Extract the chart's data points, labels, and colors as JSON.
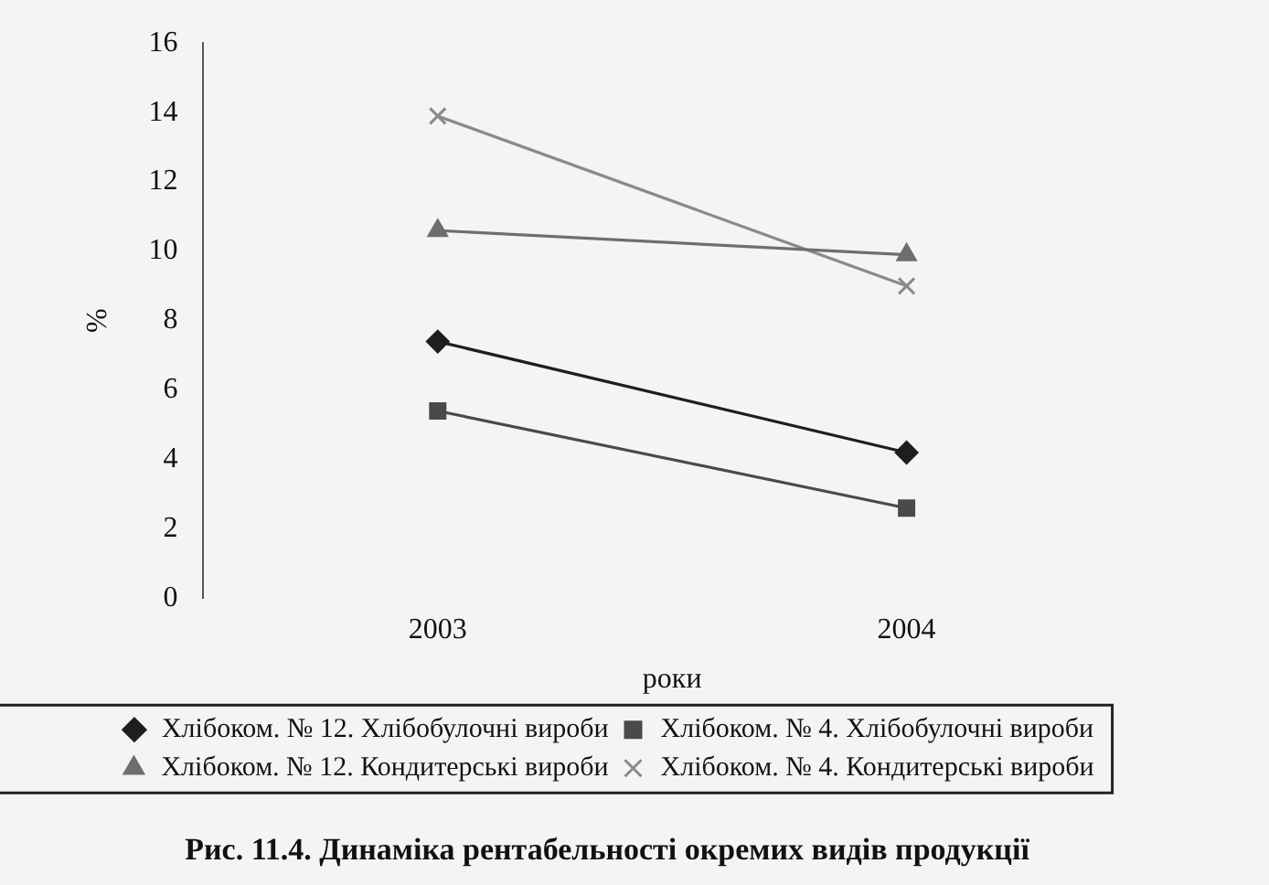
{
  "chart_data": {
    "type": "line",
    "title": "Рис. 11.4. Динаміка рентабельності окремих видів продукції",
    "xlabel": "роки",
    "ylabel": "%",
    "categories": [
      "2003",
      "2004"
    ],
    "ylim": [
      0,
      16
    ],
    "yticks": [
      0,
      2,
      4,
      6,
      8,
      10,
      12,
      14,
      16
    ],
    "grid": false,
    "legend": "bottom",
    "line_style": "solid",
    "series": [
      {
        "name": "Хлібоком. № 12. Хлібобулочні вироби",
        "color": "#1e1e1e",
        "marker": "diamond",
        "values": [
          7.4,
          4.2
        ]
      },
      {
        "name": "Хлібоком. № 4. Хлібобулочні вироби",
        "color": "#4a4a4a",
        "marker": "square",
        "values": [
          5.4,
          2.6
        ]
      },
      {
        "name": "Хлібоком. № 12. Кондитерські вироби",
        "color": "#6e6e6e",
        "marker": "triangle",
        "values": [
          10.6,
          9.9
        ]
      },
      {
        "name": "Хлібоком. № 4. Кондитерські вироби",
        "color": "#8a8a8a",
        "marker": "cross",
        "values": [
          13.9,
          9.0
        ]
      }
    ]
  }
}
